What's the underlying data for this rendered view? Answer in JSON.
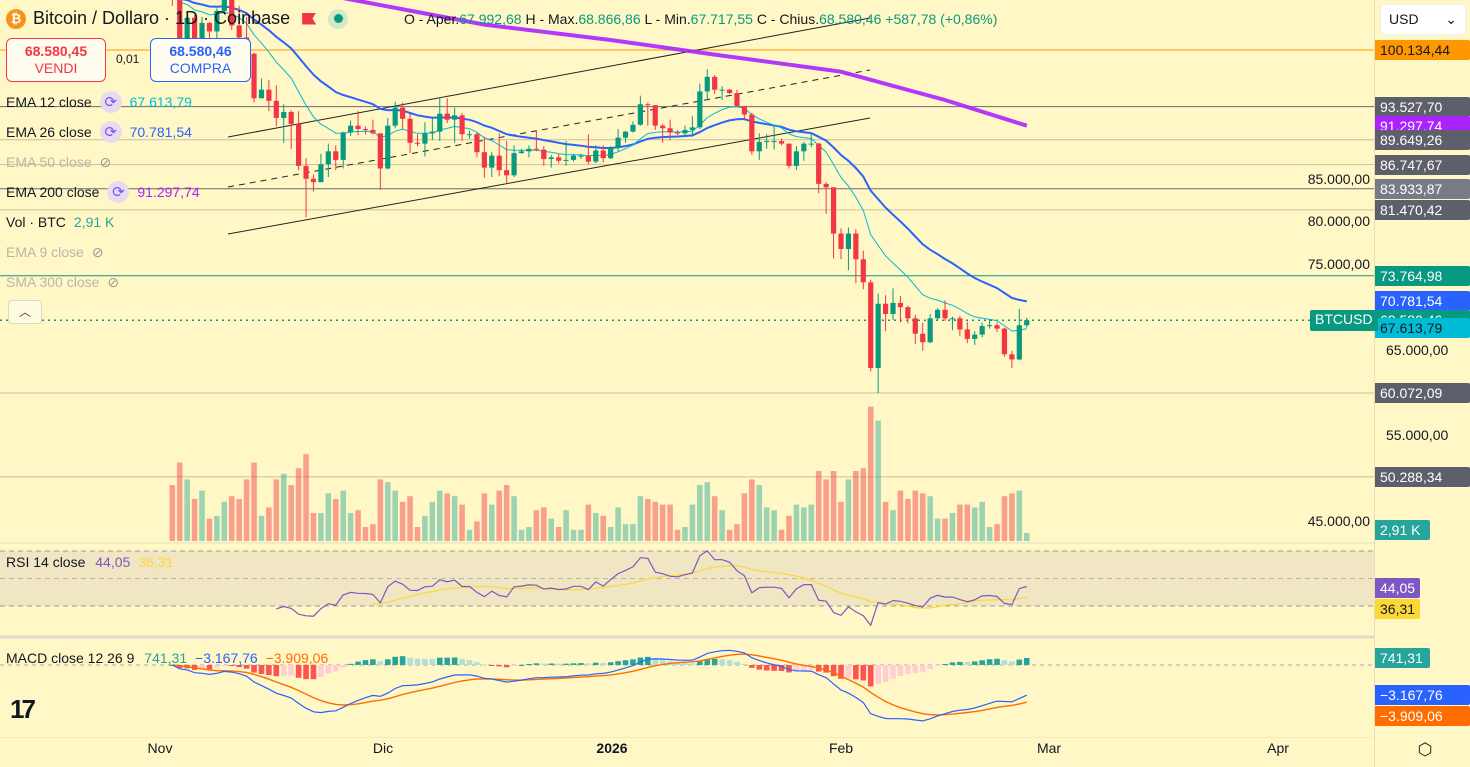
{
  "header": {
    "symbol": "Bitcoin / Dollaro · 1D · Coinbase",
    "logo_letter": "₿",
    "ohlc": {
      "open_label": "O - Aper.",
      "open": "67.992,68",
      "high_label": "H - Max.",
      "high": "68.866,86",
      "low_label": "L - Min.",
      "low": "67.717,55",
      "close_label": "C - Chius.",
      "close": "68.580,46",
      "change": "+587,78 (+0,86%)"
    }
  },
  "trade": {
    "sell_price": "68.580,45",
    "sell_label": "VENDI",
    "spread": "0,01",
    "buy_price": "68.580,46",
    "buy_label": "COMPRA"
  },
  "legend": [
    {
      "label": "EMA 12 close",
      "value": "67.613,79",
      "color": "#00bcd4",
      "visible": true,
      "icon": "refresh-icon"
    },
    {
      "label": "EMA 26 close",
      "value": "70.781,54",
      "color": "#2962ff",
      "visible": true,
      "icon": "refresh-icon"
    },
    {
      "label": "EMA 50 close",
      "visible": false,
      "icon": "eye-off-icon"
    },
    {
      "label": "EMA 200 close",
      "value": "91.297,74",
      "color": "#aa23ff",
      "visible": true,
      "icon": "refresh-icon"
    },
    {
      "label": "Vol · BTC",
      "value": "2,91 K",
      "color": "#26a69a",
      "visible": true
    },
    {
      "label": "EMA 9 close",
      "visible": false,
      "icon": "eye-off-icon"
    },
    {
      "label": "SMA 300 close",
      "visible": false,
      "icon": "eye-off-icon"
    }
  ],
  "currency_select": "USD",
  "symbol_tag": "BTCUSD",
  "colors": {
    "up": "#089981",
    "down": "#f23645",
    "background": "#fff8c6",
    "ema12": "#00bcd4",
    "ema26": "#2962ff",
    "ema200": "#aa23ff",
    "rsi": "#7e57c2",
    "rsi_ma": "#fdd835",
    "macd": "#2962ff",
    "signal": "#ff6d00"
  },
  "price_axis": {
    "ticks": [
      "85.000,00",
      "80.000,00",
      "75.000,00",
      "65.000,00",
      "55.000,00",
      "45.000,00"
    ],
    "levels": [
      {
        "price": 100134.44,
        "label": "100.134,44",
        "color": "#ff9800",
        "text": "#131722"
      },
      {
        "price": 93527.7,
        "label": "93.527,70",
        "color": "#5d606b"
      },
      {
        "price": 91297.74,
        "label": "91.297,74",
        "color": "#aa23ff",
        "noline": true
      },
      {
        "price": 89649.26,
        "label": "89.649,26",
        "color": "#5d606b",
        "light": true
      },
      {
        "price": 86747.67,
        "label": "86.747,67",
        "color": "#5d606b",
        "light": true
      },
      {
        "price": 83933.87,
        "label": "83.933,87",
        "color": "#787b86"
      },
      {
        "price": 81470.42,
        "label": "81.470,42",
        "color": "#5d606b",
        "light": true
      },
      {
        "price": 73764.98,
        "label": "73.764,98",
        "color": "#089981",
        "teal": true
      },
      {
        "price": 70781.54,
        "label": "70.781,54",
        "color": "#2962ff",
        "noline": true
      },
      {
        "price": 68580.46,
        "label": "68.580,46",
        "color": "#089981",
        "dotted": true
      },
      {
        "price": 67613.79,
        "label": "67.613,79",
        "color": "#00bcd4",
        "text": "#131722",
        "noline": true
      },
      {
        "price": 60072.09,
        "label": "60.072,09",
        "color": "#5d606b",
        "light": true
      },
      {
        "price": 50288.34,
        "label": "50.288,34",
        "color": "#5d606b",
        "light": true
      }
    ],
    "volume_label": "2,91 K"
  },
  "rsi": {
    "title": "RSI 14 close",
    "value": "44,05",
    "ma_value": "36,31",
    "levels": [
      70,
      50,
      30
    ]
  },
  "macd": {
    "title": "MACD close 12 26 9",
    "hist": "741,31",
    "macd": "−3.167,76",
    "signal": "−3.909,06"
  },
  "time_axis": [
    "Nov",
    "Dic",
    "2026",
    "Feb",
    "Mar",
    "Apr"
  ],
  "chart_data": {
    "type": "candlestick",
    "symbol": "BTCUSD",
    "interval": "1D",
    "first_date": "2025-11-03",
    "ohlcv": [
      [
        110600,
        111000,
        105300,
        106500,
        20000
      ],
      [
        106500,
        107300,
        98900,
        101500,
        28000
      ],
      [
        101500,
        104500,
        98900,
        103900,
        22000
      ],
      [
        103900,
        104200,
        100300,
        101300,
        15000
      ],
      [
        101300,
        104000,
        99300,
        103300,
        18000
      ],
      [
        103300,
        103400,
        101500,
        102300,
        8000
      ],
      [
        102300,
        105000,
        101400,
        104700,
        9000
      ],
      [
        104700,
        106600,
        104300,
        106000,
        14000
      ],
      [
        106000,
        107500,
        102500,
        103000,
        16000
      ],
      [
        103000,
        105300,
        100800,
        101600,
        15000
      ],
      [
        101600,
        104000,
        98000,
        99700,
        22000
      ],
      [
        99700,
        99800,
        94000,
        94500,
        28000
      ],
      [
        94500,
        96800,
        94500,
        95500,
        9000
      ],
      [
        95500,
        96600,
        93000,
        94200,
        12000
      ],
      [
        94200,
        96000,
        91200,
        92200,
        22000
      ],
      [
        92200,
        93800,
        89300,
        92900,
        24000
      ],
      [
        92900,
        93100,
        88600,
        91500,
        20000
      ],
      [
        91500,
        93000,
        86100,
        86600,
        26000
      ],
      [
        86600,
        87500,
        80600,
        85100,
        31000
      ],
      [
        85100,
        85600,
        83600,
        84700,
        10000
      ],
      [
        84700,
        88000,
        84700,
        86800,
        10000
      ],
      [
        86800,
        89200,
        85300,
        88300,
        17000
      ],
      [
        88300,
        89000,
        86100,
        87300,
        15000
      ],
      [
        87300,
        90600,
        86300,
        90500,
        18000
      ],
      [
        90500,
        91900,
        90100,
        91300,
        10000
      ],
      [
        91300,
        93000,
        90200,
        90900,
        11000
      ],
      [
        90900,
        91200,
        90300,
        90800,
        5000
      ],
      [
        90800,
        92000,
        90300,
        90400,
        6000
      ],
      [
        90400,
        90400,
        83800,
        86300,
        22000
      ],
      [
        86300,
        92200,
        86200,
        91300,
        21000
      ],
      [
        91300,
        94100,
        91000,
        93400,
        18000
      ],
      [
        93400,
        94000,
        90900,
        92100,
        14000
      ],
      [
        92100,
        92700,
        88100,
        89300,
        16000
      ],
      [
        89300,
        90300,
        88900,
        89200,
        5000
      ],
      [
        89200,
        91700,
        87700,
        90400,
        9000
      ],
      [
        90400,
        92300,
        89600,
        90600,
        14000
      ],
      [
        90600,
        94600,
        89500,
        92700,
        18000
      ],
      [
        92700,
        94500,
        91600,
        92000,
        17000
      ],
      [
        92000,
        93400,
        89300,
        92500,
        16000
      ],
      [
        92500,
        92800,
        89500,
        90300,
        13000
      ],
      [
        90300,
        90700,
        89800,
        90300,
        4000
      ],
      [
        90300,
        90500,
        87600,
        88200,
        7000
      ],
      [
        88200,
        90000,
        85200,
        86400,
        17000
      ],
      [
        86400,
        88200,
        85300,
        87800,
        13000
      ],
      [
        87800,
        90400,
        85400,
        86100,
        18000
      ],
      [
        86100,
        89500,
        84500,
        85500,
        20000
      ],
      [
        85500,
        89000,
        85300,
        88100,
        16000
      ],
      [
        88100,
        88600,
        88000,
        88300,
        4000
      ],
      [
        88300,
        89000,
        87600,
        88600,
        5000
      ],
      [
        88600,
        90600,
        88300,
        88500,
        11000
      ],
      [
        88500,
        88900,
        86600,
        87400,
        12000
      ],
      [
        87400,
        87900,
        86400,
        87600,
        8000
      ],
      [
        87600,
        88000,
        86900,
        87200,
        5000
      ],
      [
        87200,
        89500,
        86600,
        87300,
        11000
      ],
      [
        87300,
        88000,
        87100,
        87800,
        4000
      ],
      [
        87800,
        88000,
        87400,
        87800,
        4000
      ],
      [
        87800,
        90300,
        86800,
        87100,
        13000
      ],
      [
        87100,
        89000,
        86900,
        88400,
        10000
      ],
      [
        88400,
        89000,
        87000,
        87500,
        9000
      ],
      [
        87500,
        88900,
        87400,
        88700,
        5000
      ],
      [
        88700,
        90900,
        88300,
        89900,
        12000
      ],
      [
        89900,
        90700,
        89300,
        90600,
        6000
      ],
      [
        90600,
        91800,
        90500,
        91400,
        6000
      ],
      [
        91400,
        94800,
        91300,
        93800,
        16000
      ],
      [
        93800,
        94000,
        91300,
        93700,
        15000
      ],
      [
        93700,
        93700,
        90800,
        91300,
        14000
      ],
      [
        91300,
        91500,
        89300,
        91000,
        13000
      ],
      [
        91000,
        92000,
        89600,
        90500,
        13000
      ],
      [
        90500,
        90800,
        90200,
        90400,
        4000
      ],
      [
        90400,
        91300,
        90100,
        90800,
        5000
      ],
      [
        90800,
        92400,
        90000,
        91100,
        13000
      ],
      [
        91100,
        96200,
        90900,
        95300,
        20000
      ],
      [
        95300,
        97900,
        94300,
        97000,
        21000
      ],
      [
        97000,
        97200,
        95000,
        95500,
        16000
      ],
      [
        95500,
        95900,
        94300,
        95500,
        11000
      ],
      [
        95500,
        95600,
        95000,
        95100,
        4000
      ],
      [
        95100,
        95500,
        93500,
        93600,
        6000
      ],
      [
        93600,
        93600,
        91900,
        92600,
        17000
      ],
      [
        92600,
        92800,
        87900,
        88300,
        22000
      ],
      [
        88300,
        90400,
        87300,
        89400,
        20000
      ],
      [
        89400,
        90300,
        88600,
        89500,
        12000
      ],
      [
        89500,
        91200,
        88500,
        89500,
        11000
      ],
      [
        89500,
        89800,
        89000,
        89200,
        4000
      ],
      [
        89200,
        89200,
        86300,
        86600,
        9000
      ],
      [
        86600,
        88900,
        86100,
        88300,
        13000
      ],
      [
        88300,
        89400,
        87200,
        89200,
        12000
      ],
      [
        89200,
        90500,
        88800,
        89200,
        13000
      ],
      [
        89200,
        89300,
        83400,
        84500,
        25000
      ],
      [
        84500,
        84700,
        81000,
        84100,
        22000
      ],
      [
        84100,
        84100,
        75800,
        78700,
        25000
      ],
      [
        78700,
        79300,
        75700,
        76900,
        14000
      ],
      [
        76900,
        79400,
        74400,
        78700,
        22000
      ],
      [
        78700,
        79200,
        72900,
        75700,
        25000
      ],
      [
        75700,
        76700,
        72200,
        73000,
        26000
      ],
      [
        73000,
        73300,
        62600,
        63000,
        48000
      ],
      [
        63000,
        71700,
        60072,
        70500,
        43000
      ],
      [
        70500,
        71500,
        67300,
        69300,
        14000
      ],
      [
        69300,
        72300,
        68600,
        70600,
        11000
      ],
      [
        70600,
        71400,
        68300,
        70100,
        18000
      ],
      [
        70100,
        70300,
        68200,
        68800,
        15000
      ],
      [
        68800,
        69200,
        65800,
        67000,
        18000
      ],
      [
        67000,
        68300,
        65000,
        66000,
        17000
      ],
      [
        66000,
        69300,
        65900,
        68800,
        16000
      ],
      [
        68800,
        70000,
        68600,
        69800,
        8000
      ],
      [
        69800,
        70900,
        68500,
        68800,
        8000
      ],
      [
        68800,
        69000,
        67400,
        68800,
        10000
      ],
      [
        68800,
        69100,
        66700,
        67500,
        13000
      ],
      [
        67500,
        68400,
        65900,
        66400,
        13000
      ],
      [
        66400,
        67300,
        65700,
        66900,
        12000
      ],
      [
        66900,
        68300,
        66600,
        67900,
        14000
      ],
      [
        67900,
        68700,
        67600,
        68000,
        5000
      ],
      [
        68000,
        68300,
        67200,
        67600,
        6000
      ],
      [
        67600,
        67700,
        64300,
        64600,
        16000
      ],
      [
        64600,
        65000,
        63000,
        64000,
        17000
      ],
      [
        64000,
        69900,
        63900,
        67990,
        18000
      ],
      [
        67992.68,
        68866.86,
        67717.55,
        68580.46,
        2910
      ]
    ],
    "ema200": [
      [
        "2025-12-15",
        103100
      ],
      [
        "2026-01-01",
        101300
      ],
      [
        "2026-01-15",
        99600
      ],
      [
        "2026-02-01",
        97600
      ],
      [
        "2026-02-15",
        94300
      ],
      [
        "2026-02-26",
        91297.74
      ]
    ]
  }
}
